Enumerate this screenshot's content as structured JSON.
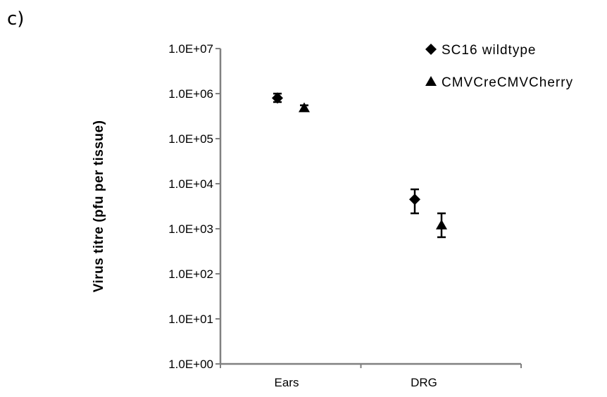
{
  "panel_label": "c)",
  "chart_data": {
    "type": "scatter",
    "title": "",
    "xlabel": "",
    "ylabel": "Virus titre (pfu per tissue)",
    "yscale": "log",
    "ylim": [
      1,
      10000000
    ],
    "yticks": [
      {
        "value": 1,
        "label": "1.0E+00"
      },
      {
        "value": 10,
        "label": "1.0E+01"
      },
      {
        "value": 100,
        "label": "1.0E+02"
      },
      {
        "value": 1000,
        "label": "1.0E+03"
      },
      {
        "value": 10000,
        "label": "1.0E+04"
      },
      {
        "value": 100000,
        "label": "1.0E+05"
      },
      {
        "value": 1000000,
        "label": "1.0E+06"
      },
      {
        "value": 10000000,
        "label": "1.0E+07"
      }
    ],
    "categories": [
      "Ears",
      "DRG"
    ],
    "legend_position": "top-right",
    "grid": false,
    "series": [
      {
        "name": "SC16 wildtype",
        "marker": "diamond",
        "color": "#000000",
        "values": [
          800000,
          4500
        ],
        "error_low": [
          650000,
          2200
        ],
        "error_high": [
          1000000,
          7500
        ]
      },
      {
        "name": "CMVCreCMVCherry",
        "marker": "triangle",
        "color": "#000000",
        "values": [
          480000,
          1200
        ],
        "error_low": [
          420000,
          650
        ],
        "error_high": [
          550000,
          2200
        ]
      }
    ]
  }
}
